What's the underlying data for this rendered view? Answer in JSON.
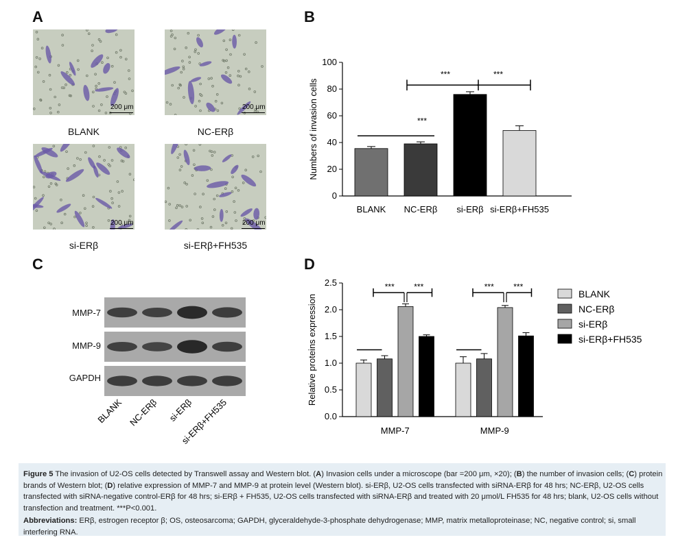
{
  "panels": {
    "a": "A",
    "b": "B",
    "c": "C",
    "d": "D"
  },
  "panel_a": {
    "images": [
      {
        "label": "BLANK",
        "scale": "200 μm"
      },
      {
        "label": "NC-ERβ",
        "scale": "200 μm"
      },
      {
        "label": "si-ERβ",
        "scale": "200 μm"
      },
      {
        "label": "si-ERβ+FH535",
        "scale": "200 μm"
      }
    ]
  },
  "panel_c": {
    "rows": [
      "MMP-7",
      "MMP-9",
      "GAPDH"
    ],
    "lanes": [
      "BLANK",
      "NC-ERβ",
      "si-ERβ",
      "si-ERβ+FH535"
    ]
  },
  "chart_data": [
    {
      "type": "bar",
      "panel": "B",
      "categories": [
        "BLANK",
        "NC-ERβ",
        "si-ERβ",
        "si-ERβ+FH535"
      ],
      "values": [
        35.5,
        39,
        76,
        49
      ],
      "errors": [
        1.5,
        1.5,
        2,
        3.5
      ],
      "colors": [
        "#707070",
        "#3a3a3a",
        "#000000",
        "#d9d9d9"
      ],
      "ylabel": "Numbers of invasion cells",
      "ylim": [
        0,
        100
      ],
      "yticks": [
        0,
        20,
        40,
        60,
        80,
        100
      ],
      "annotations": [
        "***",
        "***",
        "***"
      ]
    },
    {
      "type": "bar",
      "panel": "D",
      "categories": [
        "MMP-7",
        "MMP-9"
      ],
      "series": [
        {
          "name": "BLANK",
          "values": [
            1.0,
            1.0
          ],
          "errors": [
            0.06,
            0.12
          ],
          "color": "#d9d9d9"
        },
        {
          "name": "NC-ERβ",
          "values": [
            1.08,
            1.08
          ],
          "errors": [
            0.06,
            0.1
          ],
          "color": "#606060"
        },
        {
          "name": "si-ERβ",
          "values": [
            2.06,
            2.04
          ],
          "errors": [
            0.05,
            0.04
          ],
          "color": "#a6a6a6"
        },
        {
          "name": "si-ERβ+FH535",
          "values": [
            1.5,
            1.51
          ],
          "errors": [
            0.03,
            0.06
          ],
          "color": "#000000"
        }
      ],
      "ylabel": "Relative proteins expression",
      "ylim": [
        0,
        2.5
      ],
      "yticks": [
        "0.0",
        "0.5",
        "1.0",
        "1.5",
        "2.0",
        "2.5"
      ],
      "annotations": [
        "***",
        "***",
        "***",
        "***"
      ],
      "legend": "right"
    }
  ],
  "caption": {
    "fig": "Figure 5",
    "text1": " The invasion of U2-OS cells detected by Transwell assay and Western blot. (",
    "a": "A",
    "text2": ") Invasion cells under a microscope (bar =200 μm, ×20); (",
    "b": "B",
    "text3": ") the number of invasion cells; (",
    "c": "C",
    "text4": ") protein brands of Western blot; (",
    "d": "D",
    "text5": ") relative expression of MMP-7 and MMP-9 at protein level (Western blot). si-ERβ, U2-OS cells transfected with siRNA-ERβ for 48 hrs; NC-ERβ, U2-OS cells transfected with siRNA-negative control-ERβ for 48 hrs; si-ERβ + FH535, U2-OS cells transfected with siRNA-ERβ and treated with 20 μmol/L FH535 for 48 hrs; blank, U2-OS cells without transfection and treatment. ***P<0.001.",
    "abbr_head": "Abbreviations:",
    "abbr_text": " ERβ, estrogen receptor β; OS, osteosarcoma; GAPDH, glyceraldehyde-3-phosphate dehydrogenase; MMP, matrix metalloproteinase; NC, negative control; si, small interfering RNA."
  }
}
